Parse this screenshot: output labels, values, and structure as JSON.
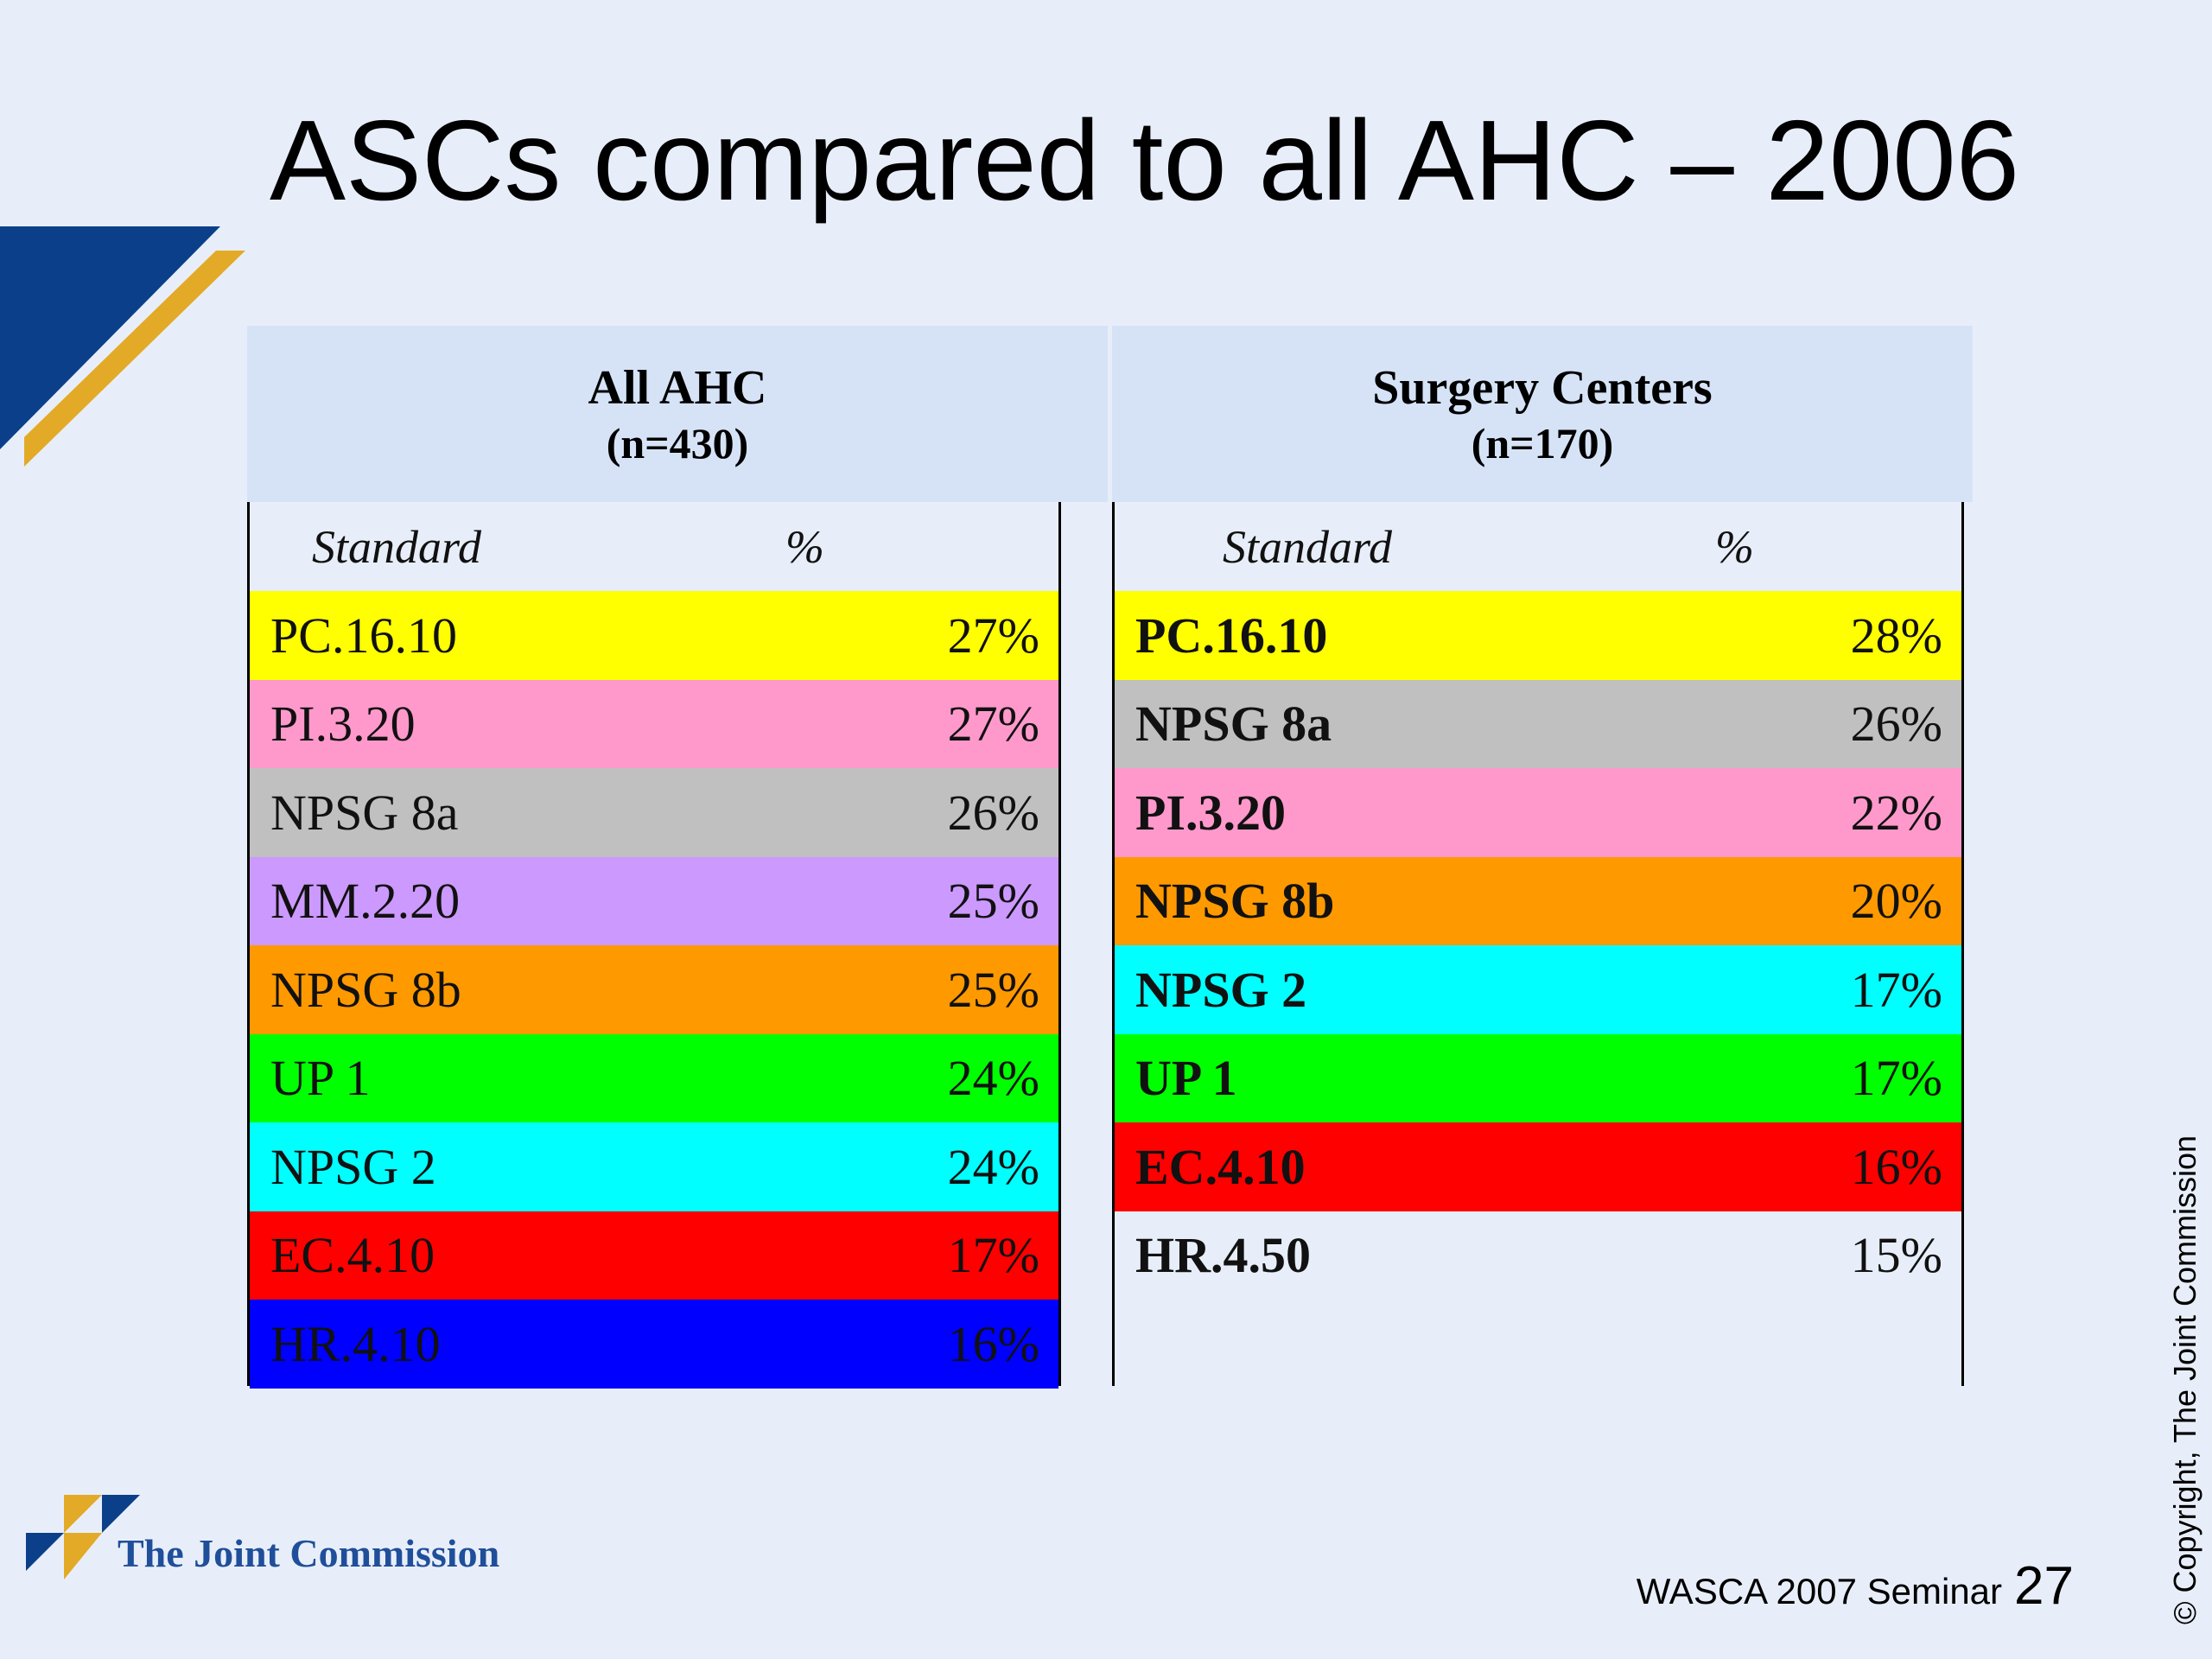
{
  "title": "ASCs compared to all AHC – 2006",
  "colors": {
    "background": "#e8eef9",
    "header_band": "#d6e3f7",
    "deco_blue": "#0b3f8a",
    "deco_gold": "#e2aa27"
  },
  "left_table": {
    "title": "All AHC",
    "subtitle": "(n=430)",
    "col_standard": "Standard",
    "col_percent": "%",
    "rows": [
      {
        "standard": "PC.16.10",
        "percent": "27%",
        "color": "#ffff00"
      },
      {
        "standard": "PI.3.20",
        "percent": "27%",
        "color": "#ff99cc"
      },
      {
        "standard": "NPSG 8a",
        "percent": "26%",
        "color": "#c0c0c0"
      },
      {
        "standard": "MM.2.20",
        "percent": "25%",
        "color": "#cc99ff"
      },
      {
        "standard": "NPSG 8b",
        "percent": "25%",
        "color": "#ff9900"
      },
      {
        "standard": "UP 1",
        "percent": "24%",
        "color": "#00ff00"
      },
      {
        "standard": "NPSG 2",
        "percent": "24%",
        "color": "#00ffff"
      },
      {
        "standard": "EC.4.10",
        "percent": "17%",
        "color": "#ff0000"
      },
      {
        "standard": "HR.4.10",
        "percent": "16%",
        "color": "#0000ff"
      }
    ]
  },
  "right_table": {
    "title": "Surgery Centers",
    "subtitle": "(n=170)",
    "col_standard": "Standard",
    "col_percent": "%",
    "rows": [
      {
        "standard": "PC.16.10",
        "percent": "28%",
        "color": "#ffff00"
      },
      {
        "standard": "NPSG 8a",
        "percent": "26%",
        "color": "#c0c0c0"
      },
      {
        "standard": "PI.3.20",
        "percent": "22%",
        "color": "#ff99cc"
      },
      {
        "standard": "NPSG 8b",
        "percent": "20%",
        "color": "#ff9900"
      },
      {
        "standard": "NPSG 2",
        "percent": "17%",
        "color": "#00ffff"
      },
      {
        "standard": "UP 1",
        "percent": "17%",
        "color": "#00ff00"
      },
      {
        "standard": "EC.4.10",
        "percent": "16%",
        "color": "#ff0000"
      },
      {
        "standard": "HR.4.50",
        "percent": "15%",
        "color": "transparent"
      }
    ]
  },
  "logo_text": "The Joint Commission",
  "footer": {
    "label": "WASCA 2007 Seminar",
    "page": "27"
  },
  "copyright": "© Copyright, The Joint Commission"
}
